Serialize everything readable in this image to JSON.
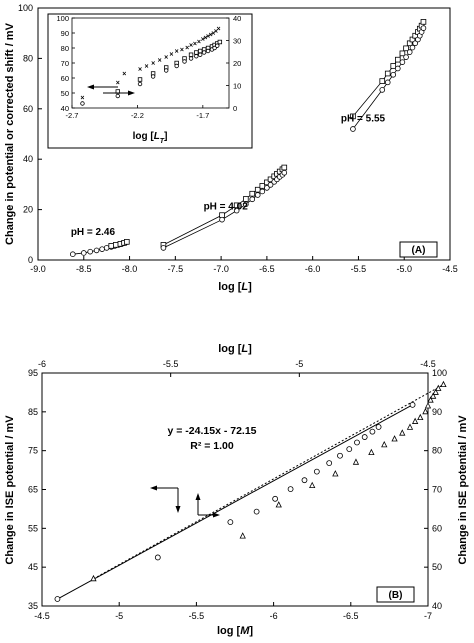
{
  "chart_data": [
    {
      "panel": "A",
      "type": "scatter",
      "panel_label": "(A)",
      "xlabel_pre": "log [",
      "xlabel_var": "L",
      "xlabel_post": "]",
      "ylabel": "Change in potential or corrected shift / mV",
      "xlim": [
        -9.0,
        -4.5
      ],
      "ylim": [
        0,
        100
      ],
      "xticks": [
        "-9.0",
        "-8.5",
        "-8.0",
        "-7.5",
        "-7.0",
        "-6.5",
        "-6.0",
        "-5.5",
        "-5.0",
        "-4.5"
      ],
      "yticks": [
        "0",
        "20",
        "40",
        "60",
        "80",
        "100"
      ],
      "annotations": [
        {
          "text": "pH = 2.46",
          "x": -8.4,
          "y": 10
        },
        {
          "text": "pH = 4.02",
          "x": -6.95,
          "y": 20
        },
        {
          "text": "pH = 5.55",
          "x": -5.45,
          "y": 55
        }
      ],
      "series": [
        {
          "marker": "circle",
          "points": [
            [
              -8.62,
              2.3
            ],
            [
              -8.5,
              2.8
            ],
            [
              -8.43,
              3.3
            ],
            [
              -8.36,
              3.8
            ],
            [
              -8.3,
              4.3
            ],
            [
              -8.25,
              4.8
            ],
            [
              -8.2,
              5.2
            ],
            [
              -8.16,
              5.6
            ],
            [
              -8.12,
              6.0
            ],
            [
              -8.09,
              6.3
            ],
            [
              -8.06,
              6.7
            ],
            [
              -8.04,
              7.0
            ]
          ]
        },
        {
          "marker": "square",
          "points": [
            [
              -8.2,
              5.6
            ],
            [
              -8.15,
              6.0
            ],
            [
              -8.1,
              6.4
            ],
            [
              -8.06,
              6.8
            ],
            [
              -8.03,
              7.2
            ]
          ]
        },
        {
          "marker": "square",
          "points": [
            [
              -7.63,
              6.0
            ],
            [
              -6.99,
              17.8
            ],
            [
              -6.83,
              21.7
            ],
            [
              -6.73,
              24.2
            ],
            [
              -6.66,
              26.3
            ],
            [
              -6.6,
              27.9
            ],
            [
              -6.55,
              29.4
            ],
            [
              -6.5,
              30.8
            ],
            [
              -6.46,
              32.0
            ],
            [
              -6.42,
              33.2
            ],
            [
              -6.39,
              34.2
            ],
            [
              -6.36,
              35.1
            ],
            [
              -6.33,
              36.0
            ],
            [
              -6.31,
              36.7
            ]
          ]
        },
        {
          "marker": "circle",
          "points": [
            [
              -7.63,
              4.8
            ],
            [
              -6.99,
              16.0
            ],
            [
              -6.83,
              19.6
            ],
            [
              -6.73,
              22.1
            ],
            [
              -6.66,
              24.1
            ],
            [
              -6.6,
              25.8
            ],
            [
              -6.55,
              27.2
            ],
            [
              -6.5,
              28.6
            ],
            [
              -6.46,
              29.8
            ],
            [
              -6.42,
              31.0
            ],
            [
              -6.39,
              32.0
            ],
            [
              -6.36,
              33.0
            ],
            [
              -6.33,
              33.8
            ],
            [
              -6.31,
              34.6
            ]
          ]
        },
        {
          "marker": "square",
          "points": [
            [
              -5.56,
              57.0
            ],
            [
              -5.24,
              71.0
            ],
            [
              -5.18,
              74.0
            ],
            [
              -5.12,
              77.0
            ],
            [
              -5.07,
              79.5
            ],
            [
              -5.02,
              82.0
            ],
            [
              -4.98,
              84.0
            ],
            [
              -4.94,
              86.0
            ],
            [
              -4.91,
              87.5
            ],
            [
              -4.88,
              89.0
            ],
            [
              -4.85,
              90.5
            ],
            [
              -4.83,
              91.8
            ],
            [
              -4.81,
              93.0
            ],
            [
              -4.79,
              94.5
            ]
          ]
        },
        {
          "marker": "circle",
          "points": [
            [
              -5.56,
              52.0
            ],
            [
              -5.24,
              67.5
            ],
            [
              -5.18,
              70.5
            ],
            [
              -5.12,
              73.5
            ],
            [
              -5.07,
              76.0
            ],
            [
              -5.02,
              78.5
            ],
            [
              -4.98,
              80.5
            ],
            [
              -4.94,
              82.5
            ],
            [
              -4.91,
              84.3
            ],
            [
              -4.88,
              86.0
            ],
            [
              -4.85,
              87.5
            ],
            [
              -4.83,
              89.0
            ],
            [
              -4.81,
              90.5
            ],
            [
              -4.79,
              92.0
            ]
          ]
        }
      ],
      "inset": {
        "xlabel_pre": "log [",
        "xlabel_var": "L",
        "xlabel_sub": "T",
        "xlabel_post": "]",
        "xlim": [
          -2.7,
          -1.5
        ],
        "ylim_left": [
          40,
          100
        ],
        "ylim_right": [
          0,
          40
        ],
        "xticks": [
          "-2.7",
          "-2.2",
          "-1.7"
        ],
        "yticks_left": [
          "40",
          "50",
          "60",
          "70",
          "80",
          "90",
          "100"
        ],
        "yticks_right": [
          "0",
          "10",
          "20",
          "30",
          "40"
        ],
        "series": [
          {
            "marker": "cross",
            "points": [
              [
                -2.62,
                47
              ],
              [
                -2.35,
                57
              ],
              [
                -2.3,
                63
              ],
              [
                -2.18,
                66
              ],
              [
                -2.13,
                68
              ],
              [
                -2.08,
                70
              ],
              [
                -2.03,
                72
              ],
              [
                -1.98,
                74
              ],
              [
                -1.94,
                76
              ],
              [
                -1.9,
                78
              ],
              [
                -1.86,
                79
              ],
              [
                -1.82,
                80.5
              ],
              [
                -1.79,
                82
              ],
              [
                -1.76,
                83
              ],
              [
                -1.73,
                84.5
              ],
              [
                -1.7,
                86
              ],
              [
                -1.68,
                87
              ],
              [
                -1.66,
                88
              ],
              [
                -1.64,
                89
              ],
              [
                -1.62,
                90
              ],
              [
                -1.6,
                91.5
              ],
              [
                -1.58,
                93
              ]
            ]
          },
          {
            "marker": "square",
            "points": [
              [
                -2.35,
                51
              ],
              [
                -2.18,
                59
              ],
              [
                -2.08,
                63
              ],
              [
                -1.98,
                67
              ],
              [
                -1.9,
                70
              ],
              [
                -1.84,
                73
              ],
              [
                -1.79,
                75.5
              ],
              [
                -1.75,
                77
              ],
              [
                -1.72,
                78
              ],
              [
                -1.69,
                79
              ],
              [
                -1.66,
                80
              ],
              [
                -1.63,
                81
              ],
              [
                -1.61,
                82
              ],
              [
                -1.59,
                83
              ],
              [
                -1.57,
                84
              ]
            ]
          },
          {
            "marker": "circle",
            "points": [
              [
                -2.35,
                48
              ],
              [
                -2.18,
                56
              ],
              [
                -2.08,
                61
              ],
              [
                -1.98,
                65
              ],
              [
                -1.9,
                68
              ],
              [
                -1.84,
                71
              ],
              [
                -1.79,
                73
              ],
              [
                -1.75,
                74.5
              ],
              [
                -1.72,
                75.5
              ],
              [
                -1.69,
                77
              ],
              [
                -1.66,
                78
              ],
              [
                -1.63,
                79
              ],
              [
                -1.61,
                80
              ],
              [
                -1.59,
                81.5
              ]
            ]
          },
          {
            "marker": "circle",
            "points": [
              [
                -2.62,
                43
              ]
            ]
          }
        ]
      }
    },
    {
      "panel": "B",
      "type": "scatter",
      "panel_label": "(B)",
      "xlabel_pre": "log [",
      "xlabel_var": "M",
      "xlabel_post": "]",
      "x2label_pre": "log [",
      "x2label_var": "L",
      "x2label_post": "]",
      "ylabel": "Change in ISE potential / mV",
      "y2label": "Change in ISE potential / mV",
      "xlim": [
        -4.5,
        -7.0
      ],
      "x2lim": [
        -6.0,
        -4.5
      ],
      "ylim": [
        35,
        95
      ],
      "y2lim": [
        40,
        100
      ],
      "xticks": [
        "-4.5",
        "-5",
        "-5.5",
        "-6",
        "-6.5",
        "-7"
      ],
      "x2ticks": [
        "-6",
        "-5.5",
        "-5",
        "-4.5"
      ],
      "yticks": [
        "35",
        "45",
        "55",
        "65",
        "75",
        "85",
        "95"
      ],
      "y2ticks": [
        "40",
        "50",
        "60",
        "70",
        "80",
        "90",
        "100"
      ],
      "equation": "y = -24.15x - 72.15",
      "r2": "R² = 1.00",
      "series": [
        {
          "marker": "circle",
          "line": "solid",
          "axes": "bottom-left",
          "points": [
            [
              -4.6,
              36.8
            ],
            [
              -5.25,
              47.5
            ],
            [
              -5.72,
              56.6
            ],
            [
              -5.89,
              59.3
            ],
            [
              -6.01,
              62.6
            ],
            [
              -6.11,
              65.1
            ],
            [
              -6.2,
              67.4
            ],
            [
              -6.28,
              69.6
            ],
            [
              -6.36,
              71.8
            ],
            [
              -6.43,
              73.7
            ],
            [
              -6.49,
              75.4
            ],
            [
              -6.54,
              77.1
            ],
            [
              -6.59,
              78.5
            ],
            [
              -6.64,
              79.9
            ],
            [
              -6.68,
              81.1
            ],
            [
              -6.9,
              86.8
            ]
          ]
        },
        {
          "marker": "triangle",
          "line": "dotted",
          "axes": "top-right",
          "points": [
            [
              -5.8,
              47
            ],
            [
              -5.22,
              58
            ],
            [
              -5.08,
              66
            ],
            [
              -4.95,
              71
            ],
            [
              -4.86,
              74
            ],
            [
              -4.78,
              77
            ],
            [
              -4.72,
              79.5
            ],
            [
              -4.67,
              81.5
            ],
            [
              -4.63,
              83
            ],
            [
              -4.6,
              84.5
            ],
            [
              -4.57,
              86
            ],
            [
              -4.55,
              87.5
            ],
            [
              -4.53,
              88.5
            ],
            [
              -4.51,
              90
            ],
            [
              -4.5,
              91.5
            ],
            [
              -4.49,
              93
            ],
            [
              -4.48,
              94
            ],
            [
              -4.47,
              95
            ],
            [
              -4.46,
              96
            ],
            [
              -4.44,
              97
            ]
          ]
        }
      ]
    }
  ]
}
